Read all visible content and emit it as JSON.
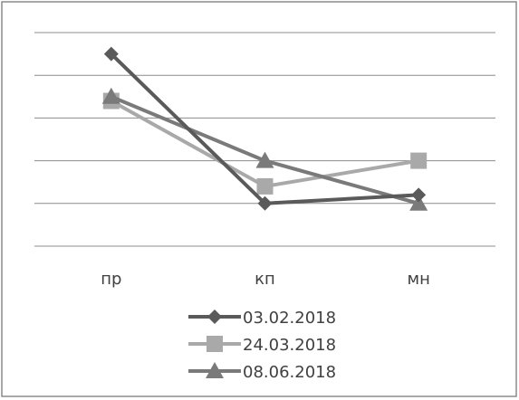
{
  "chart_data": {
    "type": "line",
    "categories": [
      "пр",
      "кп",
      "мн"
    ],
    "ylim": [
      0,
      5
    ],
    "grid": true,
    "legend_position": "bottom",
    "series": [
      {
        "name": "03.02.2018",
        "values": [
          4.5,
          1.0,
          1.2
        ],
        "color": "#5a5a5a",
        "marker": "diamond"
      },
      {
        "name": "24.03.2018",
        "values": [
          3.4,
          1.4,
          2.0
        ],
        "color": "#a9a9a9",
        "marker": "square"
      },
      {
        "name": "08.06.2018",
        "values": [
          3.5,
          2.0,
          1.0
        ],
        "color": "#7a7a7a",
        "marker": "triangle"
      }
    ]
  }
}
